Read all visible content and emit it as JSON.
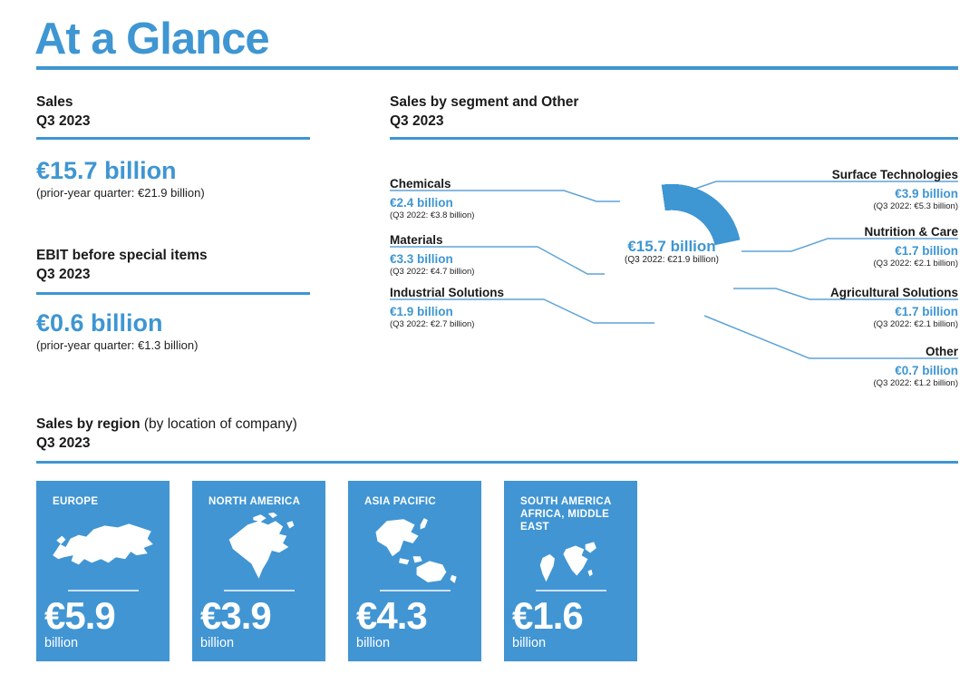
{
  "page": {
    "title": "At a Glance"
  },
  "colors": {
    "accent": "#3E96D2",
    "connector": "#5FA4D6",
    "card_bg": "#4195D3",
    "text": "#1A1A1A"
  },
  "kpis": [
    {
      "title": "Sales",
      "period": "Q3 2023",
      "value": "€15.7 billion",
      "prior": "(prior-year quarter: €21.9 billion)"
    },
    {
      "title": "EBIT before special items",
      "period": "Q3 2023",
      "value": "€0.6 billion",
      "prior": "(prior-year quarter: €1.3 billion)"
    }
  ],
  "segments": {
    "heading": "Sales by segment and Other",
    "period": "Q3 2023",
    "center": {
      "value": "€15.7 billion",
      "prior": "(Q3 2022: €21.9 billion)"
    },
    "left": [
      {
        "name": "Chemicals",
        "value": "€2.4 billion",
        "prior": "(Q3 2022: €3.8 billion)"
      },
      {
        "name": "Materials",
        "value": "€3.3 billion",
        "prior": "(Q3 2022: €4.7 billion)"
      },
      {
        "name": "Industrial Solutions",
        "value": "€1.9 billion",
        "prior": "(Q3 2022: €2.7 billion)"
      }
    ],
    "right": [
      {
        "name": "Surface Technologies",
        "value": "€3.9 billion",
        "prior": "(Q3 2022: €5.3 billion)"
      },
      {
        "name": "Nutrition & Care",
        "value": "€1.7 billion",
        "prior": "(Q3 2022: €2.1 billion)"
      },
      {
        "name": "Agricultural Solutions",
        "value": "€1.7 billion",
        "prior": "(Q3 2022: €2.1 billion)"
      },
      {
        "name": "Other",
        "value": "€0.7 billion",
        "prior": "(Q3 2022: €1.2 billion)"
      }
    ]
  },
  "regions": {
    "heading_bold": "Sales by region",
    "heading_note": " (by location of company)",
    "period": "Q3 2023",
    "cards": [
      {
        "name": "EUROPE",
        "value": "€5.9",
        "unit": "billion"
      },
      {
        "name": "NORTH AMERICA",
        "value": "€3.9",
        "unit": "billion"
      },
      {
        "name": "ASIA PACIFIC",
        "value": "€4.3",
        "unit": "billion"
      },
      {
        "name": "SOUTH AMERICA AFRICA, MIDDLE EAST",
        "value": "€1.6",
        "unit": "billion"
      }
    ]
  },
  "chart_data": [
    {
      "type": "pie",
      "subtype": "donut",
      "title": "Sales by segment and Other Q3 2023",
      "unit": "€ billion",
      "categories": [
        "Surface Technologies",
        "Nutrition & Care",
        "Agricultural Solutions",
        "Other",
        "Industrial Solutions",
        "Materials",
        "Chemicals"
      ],
      "values": [
        3.9,
        1.7,
        1.7,
        0.7,
        1.9,
        3.3,
        2.4
      ],
      "series": [
        {
          "name": "Q3 2023",
          "values": [
            3.9,
            1.7,
            1.7,
            0.7,
            1.9,
            3.3,
            2.4
          ]
        },
        {
          "name": "Q3 2022",
          "values": [
            5.3,
            2.1,
            2.1,
            1.2,
            2.7,
            4.7,
            3.8
          ]
        }
      ],
      "total": 15.7,
      "center_label": "€15.7 billion",
      "center_sublabel": "(Q3 2022: €21.9 billion)",
      "start_angle_deg": -10,
      "legend": "callout labels, single blue color"
    },
    {
      "type": "bar",
      "title": "Sales by region (by location of company) Q3 2023",
      "unit": "€ billion",
      "categories": [
        "Europe",
        "North America",
        "Asia Pacific",
        "South America, Africa, Middle East"
      ],
      "values": [
        5.9,
        3.9,
        4.3,
        1.6
      ],
      "legend": "shown as blue stat cards with continent silhouettes"
    }
  ]
}
